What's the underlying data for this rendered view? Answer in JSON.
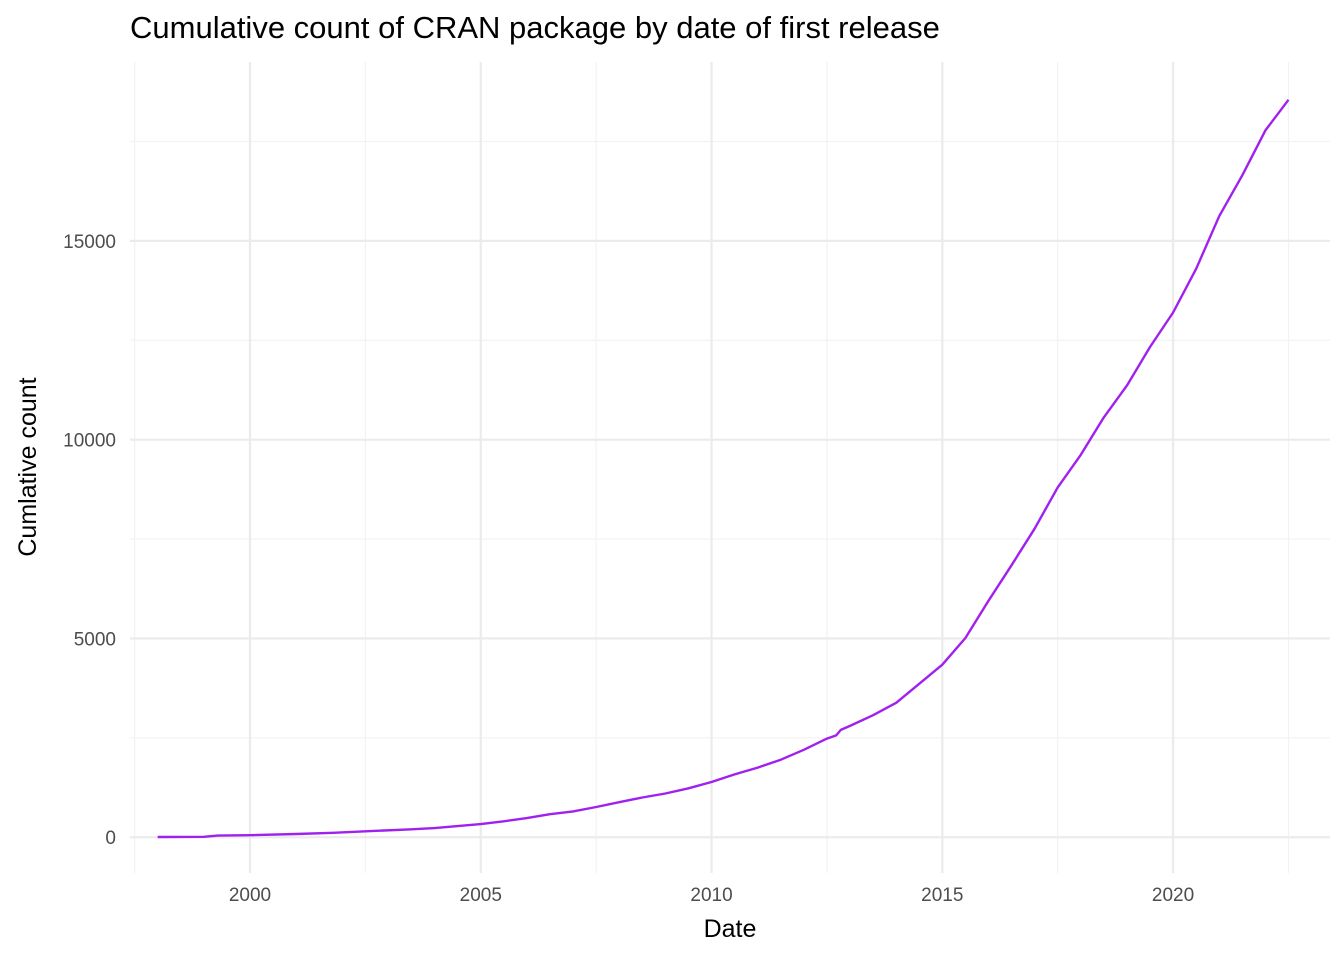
{
  "chart_data": {
    "type": "line",
    "title": "Cumulative count of CRAN package by date of first release",
    "xlabel": "Date",
    "ylabel": "Cumlative count",
    "x_major_ticks": [
      "2000",
      "2005",
      "2010",
      "2015",
      "2020"
    ],
    "y_major_ticks": [
      0,
      5000,
      10000,
      15000
    ],
    "xlim": [
      1997.4,
      2023.4
    ],
    "ylim": [
      -900,
      19500
    ],
    "grid": true,
    "line_color": "#a020f0",
    "series": [
      {
        "x": [
          1998.0,
          1999.0,
          1999.3,
          2000.0,
          2001.0,
          2001.8,
          2002.5,
          2003.5,
          2004.0,
          2005.0,
          2005.5,
          2006.0,
          2006.5,
          2007.0,
          2007.5,
          2008.0,
          2008.5,
          2009.0,
          2009.5,
          2010.0,
          2010.5,
          2011.0,
          2011.5,
          2012.0,
          2012.5,
          2012.7,
          2012.8,
          2013.0,
          2013.5,
          2014.0,
          2014.5,
          2015.0,
          2015.5,
          2016.0,
          2016.5,
          2017.0,
          2017.5,
          2018.0,
          2018.5,
          2019.0,
          2019.5,
          2020.0,
          2020.5,
          2021.0,
          2021.5,
          2022.0,
          2022.5
        ],
        "y": [
          5,
          10,
          40,
          50,
          80,
          110,
          150,
          200,
          230,
          330,
          400,
          480,
          580,
          650,
          760,
          880,
          1000,
          1100,
          1230,
          1390,
          1580,
          1750,
          1950,
          2200,
          2480,
          2560,
          2700,
          2800,
          3070,
          3380,
          3860,
          4340,
          5010,
          5950,
          6840,
          7760,
          8800,
          9620,
          10560,
          11360,
          12330,
          13200,
          14300,
          15620,
          16650,
          17780,
          18550
        ]
      }
    ]
  }
}
